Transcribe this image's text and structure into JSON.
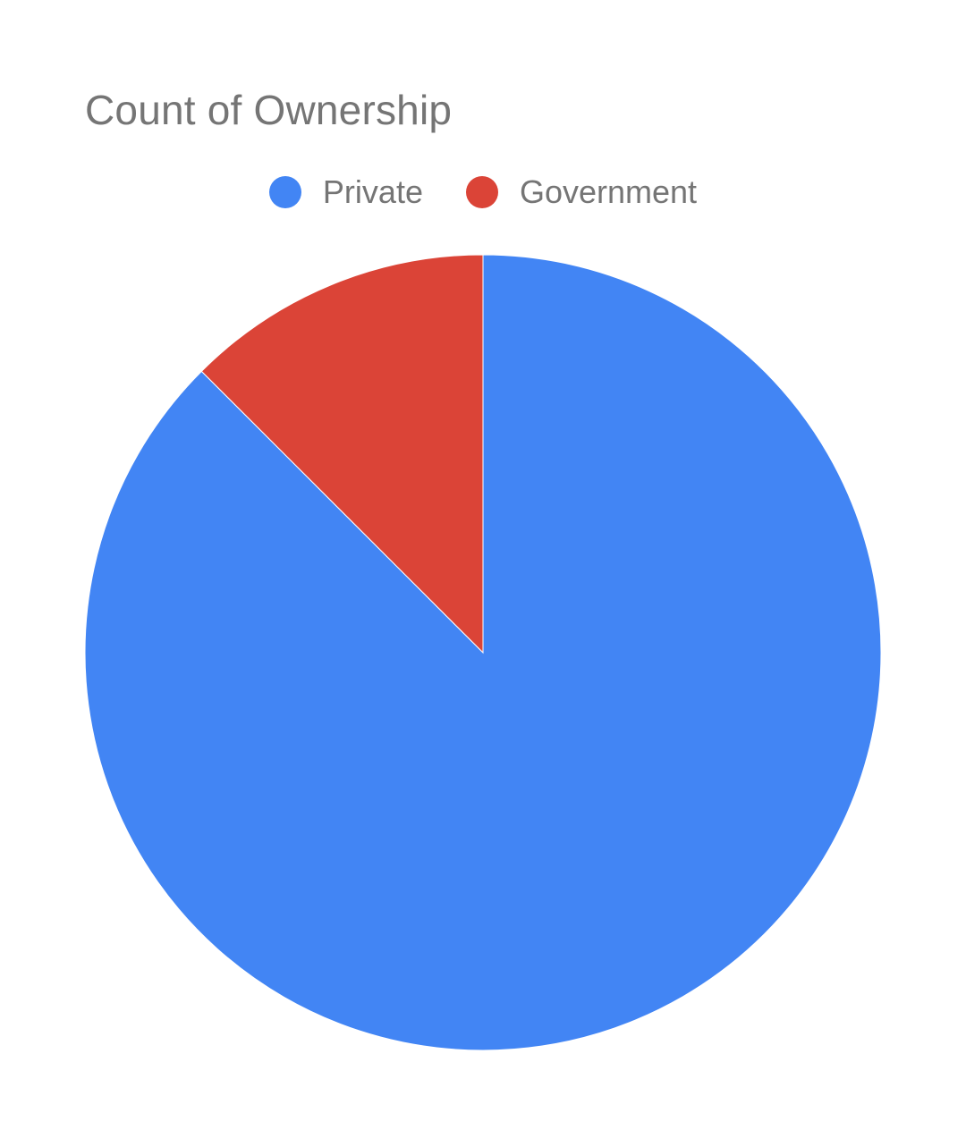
{
  "chart_data": {
    "type": "pie",
    "title": "Count of Ownership",
    "legend_position": "top",
    "slices": [
      {
        "label": "Private",
        "value": 7,
        "color": "#4285f4"
      },
      {
        "label": "Government",
        "value": 1,
        "color": "#db4437"
      }
    ]
  }
}
